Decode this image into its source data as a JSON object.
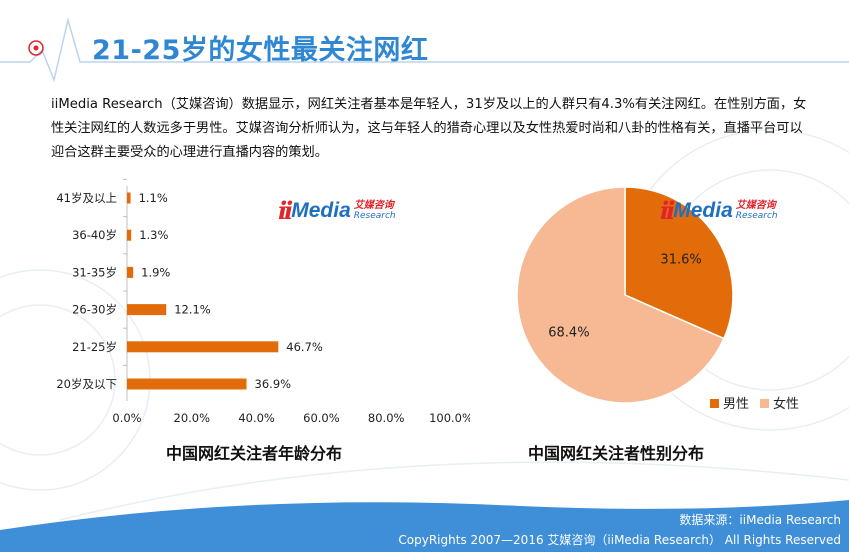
{
  "title": "21-25岁的女性最关注网红",
  "intro": "iiMedia Research（艾媒咨询）数据显示，网红关注者基本是年轻人，31岁及以上的人群只有4.3%有关注网红。在性别方面，女性关注网红的人数远多于男性。艾媒咨询分析师认为，这与年轻人的猎奇心理以及女性热爱时尚和八卦的性格有关，直播平台可以迎合这群主要受众的心理进行直播内容的策划。",
  "logo": {
    "mark": "ii",
    "media": "Media",
    "cn_top": "艾媒咨询",
    "cn_bottom": "Research"
  },
  "colors": {
    "accent": "#2f86d3",
    "bar": "#e36c0a",
    "male": "#e36c0a",
    "female": "#f6b994",
    "footer": "#3f8fd8"
  },
  "footer": {
    "source": "数据来源：iiMedia Research",
    "copyright": "CopyRights 2007—2016 艾媒咨询（iiMedia Research） All Rights Reserved"
  },
  "chart_data": [
    {
      "type": "bar",
      "orientation": "horizontal",
      "title": "中国网红关注者年龄分布",
      "categories": [
        "41岁及以上",
        "36-40岁",
        "31-35岁",
        "26-30岁",
        "21-25岁",
        "20岁及以下"
      ],
      "values": [
        1.1,
        1.3,
        1.9,
        12.1,
        46.7,
        36.9
      ],
      "value_labels": [
        "1.1%",
        "1.3%",
        "1.9%",
        "12.1%",
        "46.7%",
        "36.9%"
      ],
      "xlim": [
        0,
        100
      ],
      "x_ticks": [
        "0.0%",
        "20.0%",
        "40.0%",
        "60.0%",
        "80.0%",
        "100.0%"
      ],
      "grid": false
    },
    {
      "type": "pie",
      "title": "中国网红关注者性别分布",
      "labels": [
        "男性",
        "女性"
      ],
      "values": [
        31.6,
        68.4
      ],
      "value_labels": [
        "31.6%",
        "68.4%"
      ],
      "legend": "bottom-right"
    }
  ]
}
